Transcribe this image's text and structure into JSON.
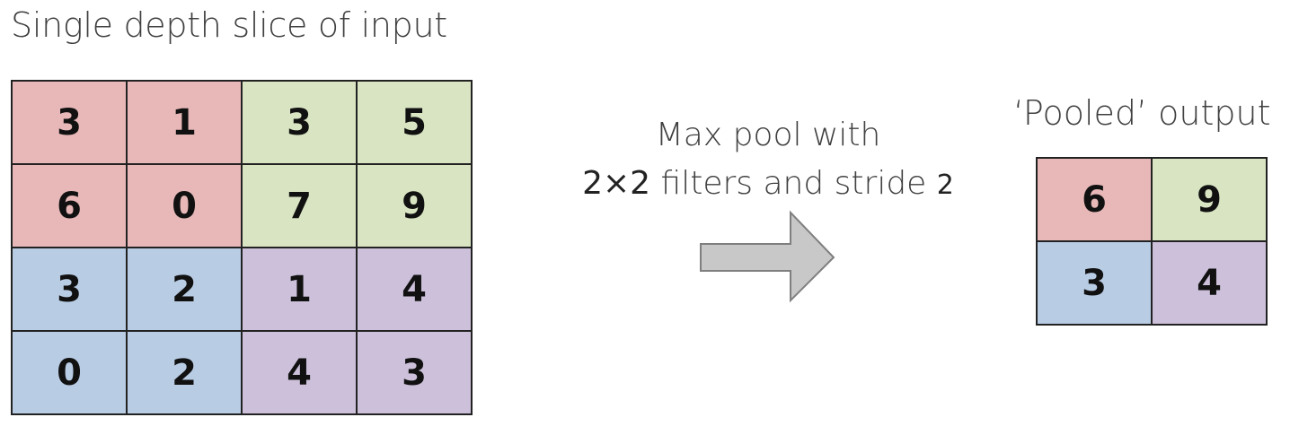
{
  "input": {
    "title": "Single depth slice of input",
    "rows": [
      [
        {
          "value": "3",
          "region": "red"
        },
        {
          "value": "1",
          "region": "red"
        },
        {
          "value": "3",
          "region": "green"
        },
        {
          "value": "5",
          "region": "green"
        }
      ],
      [
        {
          "value": "6",
          "region": "red"
        },
        {
          "value": "0",
          "region": "red"
        },
        {
          "value": "7",
          "region": "green"
        },
        {
          "value": "9",
          "region": "green"
        }
      ],
      [
        {
          "value": "3",
          "region": "blue"
        },
        {
          "value": "2",
          "region": "blue"
        },
        {
          "value": "1",
          "region": "purple"
        },
        {
          "value": "4",
          "region": "purple"
        }
      ],
      [
        {
          "value": "0",
          "region": "blue"
        },
        {
          "value": "2",
          "region": "blue"
        },
        {
          "value": "4",
          "region": "purple"
        },
        {
          "value": "3",
          "region": "purple"
        }
      ]
    ]
  },
  "operation": {
    "line1": "Max pool with",
    "size": "2×2",
    "line2_text": " filters and stride ",
    "stride": "2"
  },
  "output": {
    "title": "‘Pooled’ output",
    "rows": [
      [
        {
          "value": "6",
          "region": "red"
        },
        {
          "value": "9",
          "region": "green"
        }
      ],
      [
        {
          "value": "3",
          "region": "blue"
        },
        {
          "value": "4",
          "region": "purple"
        }
      ]
    ]
  },
  "colors": {
    "red": "#e8b8b8",
    "green": "#d9e5c2",
    "blue": "#b8cce4",
    "purple": "#ccc0da",
    "arrow_fill": "#c8c8c8",
    "arrow_stroke": "#7f7f7f"
  },
  "icons": {
    "arrow": "right-arrow-icon"
  }
}
